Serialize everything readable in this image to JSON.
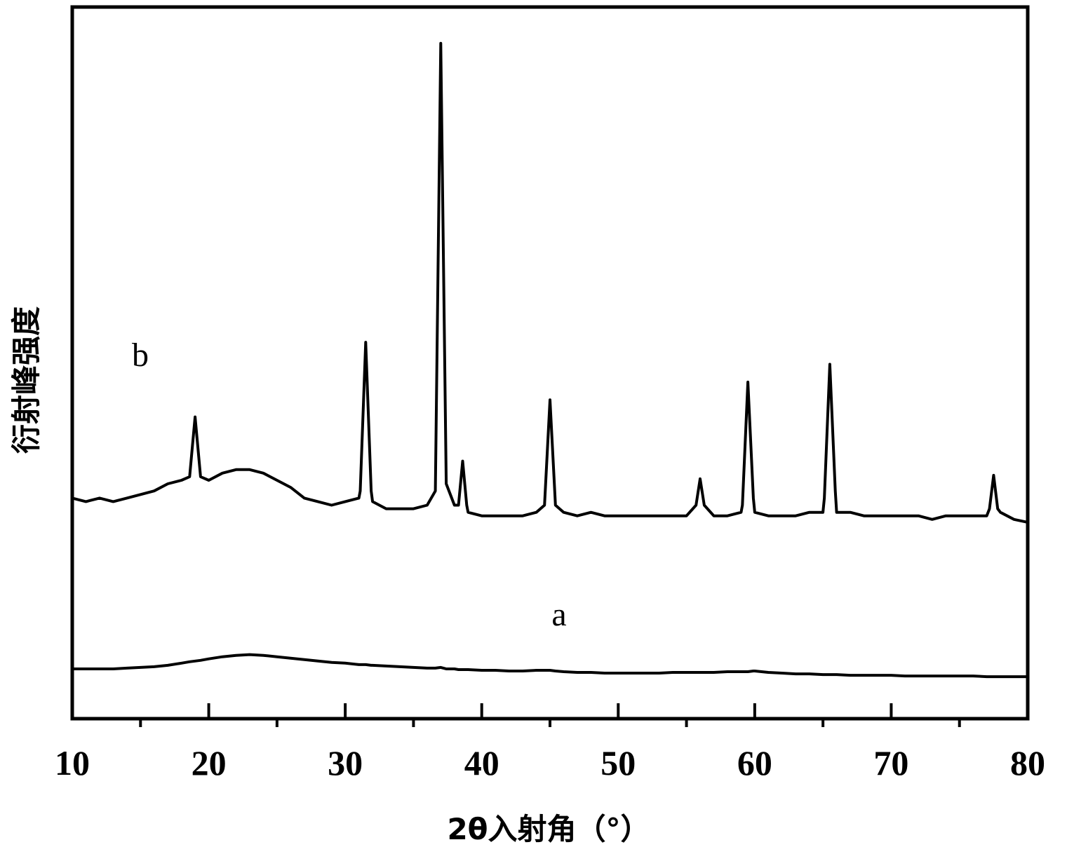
{
  "chart_data": {
    "type": "line",
    "x_label": "2θ入射角（°）",
    "y_label": "衍射峰强度",
    "annotations": [
      "b",
      "a"
    ],
    "x": [
      10,
      11,
      12,
      13,
      14,
      15,
      16,
      17,
      18,
      18.6,
      19,
      19.4,
      20,
      21,
      22,
      23,
      24,
      25,
      26,
      27,
      28,
      29,
      30,
      31,
      31.1,
      31.5,
      31.9,
      32,
      33,
      34,
      35,
      36,
      36.6,
      37,
      37.4,
      38,
      38.3,
      38.6,
      38.9,
      39,
      40,
      41,
      42,
      43,
      44,
      44.6,
      45,
      45.4,
      46,
      47,
      48,
      49,
      50,
      51,
      52,
      53,
      54,
      55,
      55.7,
      56,
      56.3,
      57,
      58,
      59,
      59.1,
      59.5,
      59.9,
      60,
      61,
      62,
      63,
      64,
      65,
      65.1,
      65.5,
      65.9,
      66,
      67,
      68,
      69,
      70,
      71,
      72,
      73,
      74,
      75,
      76,
      77,
      77.2,
      77.5,
      77.8,
      78,
      79,
      80
    ],
    "series": [
      {
        "name": "b",
        "color": "#000000",
        "values": [
          31,
          30.5,
          31,
          30.5,
          31,
          31.5,
          32,
          33,
          33.5,
          34,
          42.4,
          34,
          33.5,
          34.5,
          35,
          35,
          34.5,
          33.5,
          32.5,
          31,
          30.5,
          30,
          30.5,
          31,
          32,
          52.9,
          32,
          30.5,
          29.5,
          29.5,
          29.5,
          30,
          32,
          94.9,
          33,
          30,
          30,
          36.2,
          30,
          29,
          28.5,
          28.5,
          28.5,
          28.5,
          29,
          30,
          44.8,
          30,
          29,
          28.5,
          29,
          28.5,
          28.5,
          28.5,
          28.5,
          28.5,
          28.5,
          28.5,
          30,
          33.7,
          30,
          28.5,
          28.5,
          29,
          30,
          47.3,
          31,
          29,
          28.5,
          28.5,
          28.5,
          29,
          29,
          31,
          49.8,
          32,
          29,
          29,
          28.5,
          28.5,
          28.5,
          28.5,
          28.5,
          28,
          28.5,
          28.5,
          28.5,
          28.5,
          29.5,
          34.2,
          29.5,
          29,
          28,
          27.6
        ]
      },
      {
        "name": "a",
        "color": "#000000",
        "values": [
          7,
          7,
          7,
          7,
          7.1,
          7.2,
          7.3,
          7.5,
          7.8,
          8,
          8.1,
          8.2,
          8.4,
          8.7,
          8.9,
          9,
          8.9,
          8.7,
          8.5,
          8.3,
          8.1,
          7.9,
          7.8,
          7.6,
          7.6,
          7.6,
          7.5,
          7.5,
          7.4,
          7.3,
          7.2,
          7.1,
          7.1,
          7.2,
          7,
          7,
          6.9,
          6.9,
          6.9,
          6.9,
          6.8,
          6.8,
          6.7,
          6.7,
          6.8,
          6.8,
          6.8,
          6.7,
          6.6,
          6.5,
          6.5,
          6.4,
          6.4,
          6.4,
          6.4,
          6.4,
          6.5,
          6.5,
          6.5,
          6.5,
          6.5,
          6.5,
          6.6,
          6.6,
          6.6,
          6.6,
          6.7,
          6.7,
          6.5,
          6.4,
          6.3,
          6.3,
          6.2,
          6.2,
          6.2,
          6.2,
          6.2,
          6.1,
          6.1,
          6.1,
          6.1,
          6,
          6,
          6,
          6,
          6,
          6,
          5.9,
          5.9,
          5.9,
          5.9,
          5.9,
          5.9,
          5.9
        ]
      }
    ],
    "xlim": [
      10,
      80
    ],
    "ylim": [
      0,
      100
    ],
    "xticks": [
      10,
      20,
      30,
      40,
      50,
      60,
      70,
      80
    ],
    "xminor_ticks": [
      15,
      25,
      35,
      45,
      55,
      65,
      75
    ],
    "grid": false
  }
}
